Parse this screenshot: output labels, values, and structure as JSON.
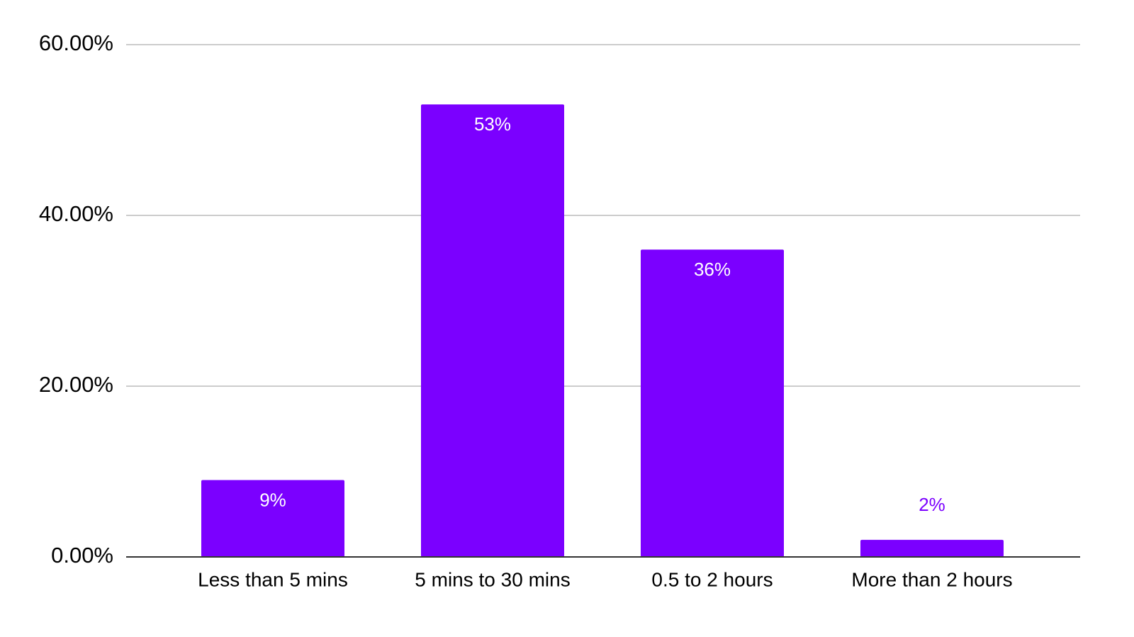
{
  "chart_data": {
    "type": "bar",
    "categories": [
      "Less than 5 mins",
      "5 mins to 30 mins",
      "0.5 to 2 hours",
      "More than 2 hours"
    ],
    "values": [
      9,
      53,
      36,
      2
    ],
    "value_labels": [
      "9%",
      "53%",
      "36%",
      "2%"
    ],
    "color": "#7b00ff",
    "ylim": [
      0,
      60
    ],
    "yticks": [
      {
        "value": 0,
        "label": "0.00%"
      },
      {
        "value": 20,
        "label": "20.00%"
      },
      {
        "value": 40,
        "label": "40.00%"
      },
      {
        "value": 60,
        "label": "60.00%"
      }
    ],
    "grid": true
  }
}
